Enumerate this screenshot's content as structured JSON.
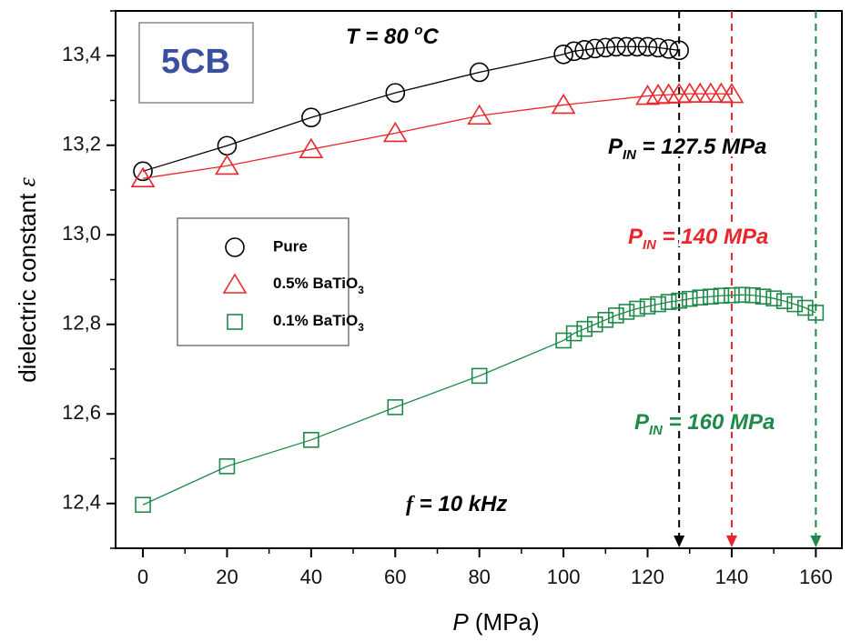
{
  "chart_data": {
    "type": "scatter",
    "x_label": [
      {
        "t": "P",
        "italic": true
      },
      {
        "t": "  (MPa)"
      }
    ],
    "y_label": [
      {
        "t": "dielectric constant "
      },
      {
        "t": "ε",
        "italic": true,
        "serif": true
      }
    ],
    "inset_label": "5CB",
    "annotations": [
      {
        "color": "#000000",
        "parts": [
          {
            "t": "T = 80 "
          },
          {
            "t": "o",
            "sup": true
          },
          {
            "t": "C"
          }
        ]
      },
      {
        "color": "#000000",
        "parts": [
          {
            "t": "P"
          },
          {
            "t": "IN",
            "sub": true
          },
          {
            "t": " = 127.5 MPa"
          }
        ]
      },
      {
        "color": "#e8262b",
        "parts": [
          {
            "t": "P"
          },
          {
            "t": "IN",
            "sub": true
          },
          {
            "t": " = 140 MPa"
          }
        ]
      },
      {
        "color": "#1e8a4a",
        "parts": [
          {
            "t": "P"
          },
          {
            "t": "IN",
            "sub": true
          },
          {
            "t": " = 160 MPa"
          }
        ]
      },
      {
        "color": "#000000",
        "parts": [
          {
            "t": "f",
            "serif": true
          },
          {
            "t": " = 10 kHz"
          }
        ]
      }
    ],
    "markers": [
      {
        "x": 127.5,
        "color": "#000000"
      },
      {
        "x": 140,
        "color": "#e8262b"
      },
      {
        "x": 160,
        "color": "#1e8a4a"
      }
    ],
    "xlim": [
      -6.5,
      166.2
    ],
    "ylim": [
      12.3,
      13.5
    ],
    "xticks": [
      0,
      20,
      40,
      60,
      80,
      100,
      120,
      140,
      160
    ],
    "xminorticks": [
      10,
      30,
      50,
      70,
      90,
      110,
      130,
      150
    ],
    "yticks": [
      {
        "value": 12.4,
        "label": "12,4"
      },
      {
        "value": 12.6,
        "label": "12,6"
      },
      {
        "value": 12.8,
        "label": "12,8"
      },
      {
        "value": 13.0,
        "label": "13,0"
      },
      {
        "value": 13.2,
        "label": "13,2"
      },
      {
        "value": 13.4,
        "label": "13,4"
      }
    ],
    "yminorticks": [
      12.3,
      12.5,
      12.7,
      12.9,
      13.1,
      13.3,
      13.5
    ],
    "series": [
      {
        "name": "Pure",
        "marker": "circle",
        "color": "#000000",
        "x": [
          0,
          20,
          40,
          60,
          80,
          100,
          102.5,
          105,
          107.5,
          110,
          112.5,
          115,
          117.5,
          120,
          122.5,
          125,
          127.5
        ],
        "values": [
          13.142,
          13.199,
          13.262,
          13.317,
          13.363,
          13.403,
          13.41,
          13.413,
          13.416,
          13.418,
          13.42,
          13.42,
          13.42,
          13.42,
          13.418,
          13.415,
          13.412
        ]
      },
      {
        "name": "0.5% BaTiO3",
        "marker": "triangle",
        "color": "#e8262b",
        "x": [
          0,
          20,
          40,
          60,
          80,
          100,
          120,
          122.5,
          125,
          127.5,
          130,
          132.5,
          135,
          137.5,
          140
        ],
        "values": [
          13.126,
          13.154,
          13.191,
          13.227,
          13.266,
          13.29,
          13.31,
          13.312,
          13.313,
          13.314,
          13.315,
          13.315,
          13.315,
          13.315,
          13.314
        ]
      },
      {
        "name": "0.1% BaTiO3",
        "marker": "square",
        "color": "#1e8a4a",
        "x": [
          0,
          20,
          40,
          60,
          80,
          100,
          102.5,
          105,
          107.5,
          110,
          112.5,
          115,
          117.5,
          120,
          122.5,
          125,
          127.5,
          130,
          132.5,
          135,
          137.5,
          140,
          142.5,
          145,
          147.5,
          150,
          152.5,
          155,
          157.5,
          160
        ],
        "values": [
          12.397,
          12.483,
          12.542,
          12.615,
          12.685,
          12.764,
          12.78,
          12.79,
          12.8,
          12.81,
          12.82,
          12.828,
          12.835,
          12.84,
          12.845,
          12.85,
          12.853,
          12.857,
          12.86,
          12.862,
          12.864,
          12.865,
          12.866,
          12.865,
          12.862,
          12.858,
          12.852,
          12.845,
          12.837,
          12.826
        ]
      }
    ]
  }
}
